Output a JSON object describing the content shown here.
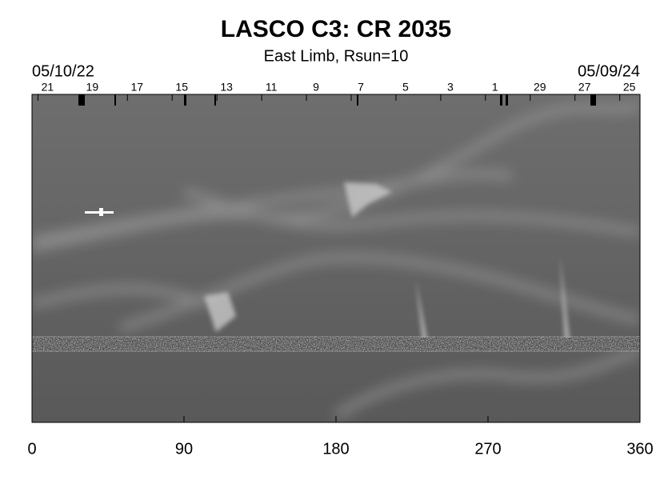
{
  "chart_data": {
    "type": "synoptic-map",
    "title": "LASCO C3: CR 2035",
    "subtitle": "East Limb, Rsun=10",
    "start_date": "05/10/22",
    "end_date": "05/09/24",
    "xlim": [
      0,
      360
    ],
    "xticks": [
      0,
      90,
      180,
      270,
      360
    ],
    "top_ticks": [
      {
        "value": 3.5,
        "label": "21"
      },
      {
        "value": 30,
        "label": "19"
      },
      {
        "value": 56.5,
        "label": "17"
      },
      {
        "value": 83,
        "label": "15"
      },
      {
        "value": 109.5,
        "label": "13"
      },
      {
        "value": 136,
        "label": "11"
      },
      {
        "value": 162.5,
        "label": "9"
      },
      {
        "value": 189,
        "label": "7"
      },
      {
        "value": 215.5,
        "label": "5"
      },
      {
        "value": 242,
        "label": "3"
      },
      {
        "value": 268.5,
        "label": "1"
      },
      {
        "value": 295,
        "label": "29"
      },
      {
        "value": 321.5,
        "label": "27"
      },
      {
        "value": 348,
        "label": "25"
      }
    ]
  }
}
